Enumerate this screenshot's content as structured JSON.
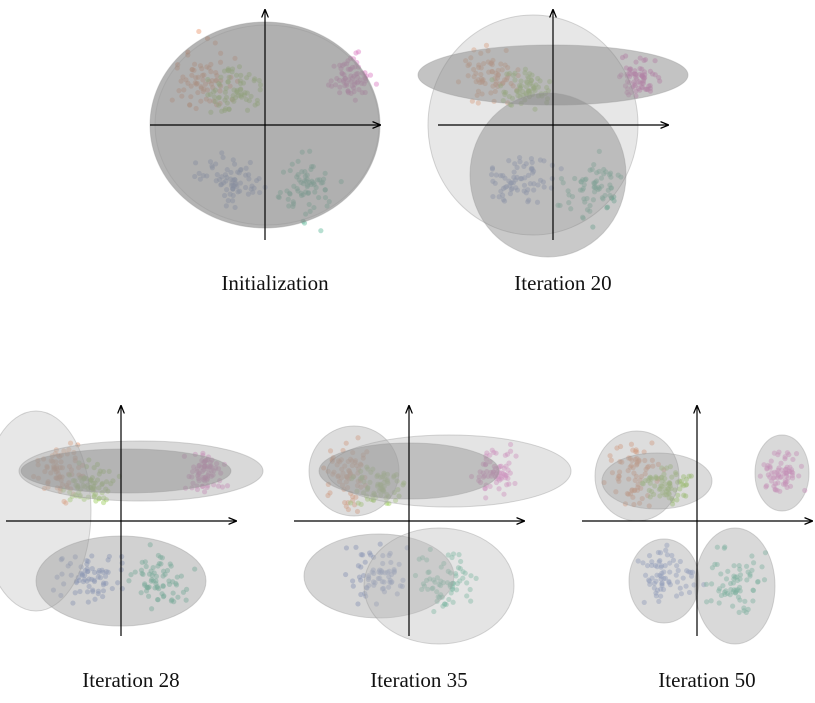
{
  "panels": [
    {
      "caption": "Initialization"
    },
    {
      "caption": "Iteration 20"
    },
    {
      "caption": "Iteration 28"
    },
    {
      "caption": "Iteration 35"
    },
    {
      "caption": "Iteration 50"
    }
  ]
}
